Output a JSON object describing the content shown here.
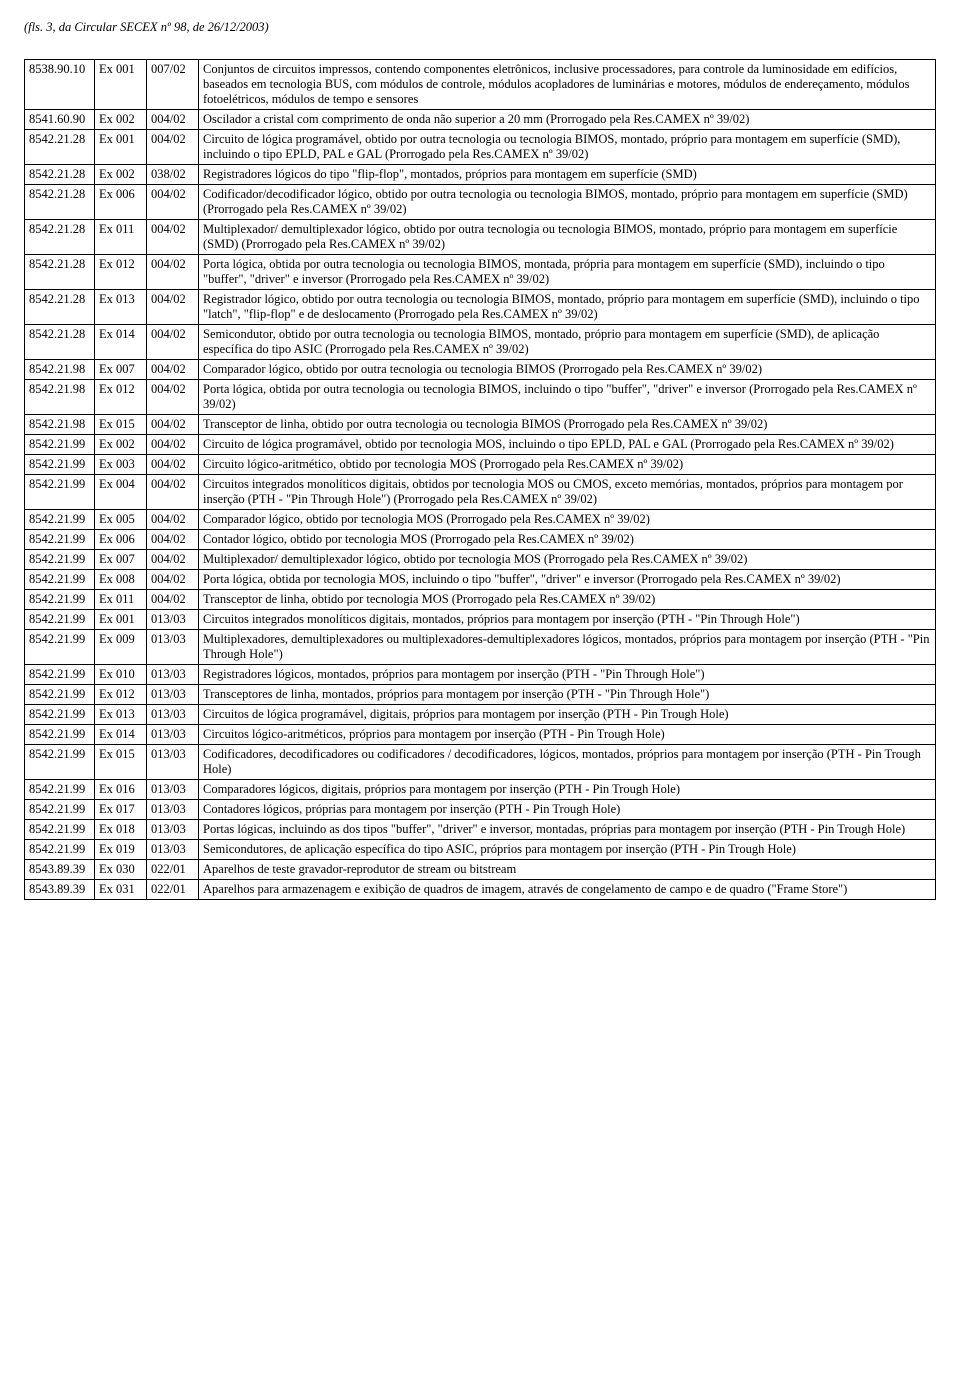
{
  "header": "(fls. 3, da Circular SECEX nº  98, de 26/12/2003)",
  "rows": [
    {
      "ncm": "8538.90.10",
      "ex": "Ex 001",
      "res": "007/02",
      "desc": "Conjuntos de circuitos impressos, contendo componentes eletrônicos, inclusive processadores, para controle da luminosidade em edifícios, baseados em tecnologia BUS, com módulos de controle, módulos acopladores de luminárias e motores, módulos de endereçamento, módulos fotoelétricos, módulos de tempo e sensores"
    },
    {
      "ncm": "8541.60.90",
      "ex": "Ex 002",
      "res": "004/02",
      "desc": "Oscilador a cristal com comprimento de onda não superior a 20 mm (Prorrogado pela Res.CAMEX nº 39/02)"
    },
    {
      "ncm": "8542.21.28",
      "ex": "Ex 001",
      "res": "004/02",
      "desc": "Circuito de lógica programável, obtido por outra tecnologia ou tecnologia BIMOS, montado, próprio para montagem em superfície (SMD), incluindo o tipo EPLD, PAL e GAL (Prorrogado pela Res.CAMEX nº 39/02)"
    },
    {
      "ncm": "8542.21.28",
      "ex": "Ex 002",
      "res": "038/02",
      "desc": "Registradores lógicos do tipo \"flip-flop\", montados, próprios para montagem em superfície (SMD)"
    },
    {
      "ncm": "8542.21.28",
      "ex": "Ex 006",
      "res": "004/02",
      "desc": "Codificador/decodificador lógico, obtido por outra tecnologia ou tecnologia BIMOS, montado, próprio para montagem em superfície (SMD) (Prorrogado pela Res.CAMEX nº 39/02)"
    },
    {
      "ncm": "8542.21.28",
      "ex": "Ex 011",
      "res": "004/02",
      "desc": "Multiplexador/ demultiplexador lógico, obtido por outra tecnologia ou tecnologia BIMOS, montado, próprio para montagem em superfície (SMD) (Prorrogado pela Res.CAMEX nº 39/02)"
    },
    {
      "ncm": "8542.21.28",
      "ex": "Ex 012",
      "res": "004/02",
      "desc": "Porta lógica, obtida por outra tecnologia ou tecnologia BIMOS, montada, própria para montagem em superfície (SMD), incluindo o tipo \"buffer\", \"driver\" e inversor (Prorrogado pela Res.CAMEX nº 39/02)"
    },
    {
      "ncm": "8542.21.28",
      "ex": "Ex 013",
      "res": "004/02",
      "desc": "Registrador lógico, obtido por outra tecnologia ou tecnologia BIMOS, montado, próprio para montagem em superfície (SMD), incluindo o tipo \"latch\", \"flip-flop\" e de deslocamento (Prorrogado pela Res.CAMEX nº 39/02)"
    },
    {
      "ncm": "8542.21.28",
      "ex": "Ex 014",
      "res": "004/02",
      "desc": "Semicondutor, obtido por outra tecnologia ou tecnologia BIMOS, montado, próprio para montagem em superfície (SMD), de aplicação específica do tipo ASIC (Prorrogado pela Res.CAMEX nº 39/02)"
    },
    {
      "ncm": "8542.21.98",
      "ex": "Ex 007",
      "res": "004/02",
      "desc": "Comparador lógico, obtido por outra tecnologia ou tecnologia BIMOS (Prorrogado pela Res.CAMEX nº 39/02)"
    },
    {
      "ncm": "8542.21.98",
      "ex": "Ex 012",
      "res": "004/02",
      "desc": "Porta lógica, obtida por outra tecnologia ou tecnologia BIMOS, incluindo o tipo \"buffer\", \"driver\" e inversor (Prorrogado pela Res.CAMEX nº 39/02)"
    },
    {
      "ncm": "8542.21.98",
      "ex": "Ex 015",
      "res": "004/02",
      "desc": "Transceptor de linha, obtido por outra tecnologia ou tecnologia BIMOS (Prorrogado pela Res.CAMEX nº 39/02)"
    },
    {
      "ncm": "8542.21.99",
      "ex": "Ex 002",
      "res": "004/02",
      "desc": "Circuito de lógica programável, obtido por tecnologia MOS, incluindo o tipo EPLD, PAL e GAL (Prorrogado pela Res.CAMEX nº 39/02)"
    },
    {
      "ncm": "8542.21.99",
      "ex": "Ex 003",
      "res": "004/02",
      "desc": "Circuito lógico-aritmético, obtido por tecnologia MOS (Prorrogado pela Res.CAMEX nº 39/02)"
    },
    {
      "ncm": "8542.21.99",
      "ex": "Ex 004",
      "res": "004/02",
      "desc": "Circuitos integrados monolíticos digitais, obtidos por tecnologia MOS ou CMOS, exceto memórias, montados, próprios para montagem por inserção (PTH - \"Pin Through Hole\") (Prorrogado pela Res.CAMEX nº 39/02)"
    },
    {
      "ncm": "8542.21.99",
      "ex": "Ex 005",
      "res": "004/02",
      "desc": "Comparador lógico, obtido por tecnologia MOS (Prorrogado pela Res.CAMEX nº 39/02)"
    },
    {
      "ncm": "8542.21.99",
      "ex": "Ex 006",
      "res": "004/02",
      "desc": "Contador lógico, obtido por tecnologia MOS (Prorrogado pela Res.CAMEX nº 39/02)"
    },
    {
      "ncm": "8542.21.99",
      "ex": "Ex 007",
      "res": "004/02",
      "desc": "Multiplexador/ demultiplexador lógico, obtido por tecnologia MOS (Prorrogado pela Res.CAMEX nº 39/02)"
    },
    {
      "ncm": "8542.21.99",
      "ex": "Ex 008",
      "res": "004/02",
      "desc": "Porta lógica, obtida por tecnologia MOS, incluindo o tipo \"buffer\", \"driver\" e inversor (Prorrogado pela Res.CAMEX nº 39/02)"
    },
    {
      "ncm": "8542.21.99",
      "ex": "Ex 011",
      "res": "004/02",
      "desc": "Transceptor de linha, obtido por tecnologia MOS (Prorrogado pela Res.CAMEX nº 39/02)"
    },
    {
      "ncm": "8542.21.99",
      "ex": "Ex 001",
      "res": "013/03",
      "desc": "Circuitos integrados monolíticos digitais, montados, próprios para montagem por inserção (PTH - \"Pin Through Hole\")"
    },
    {
      "ncm": "8542.21.99",
      "ex": "Ex 009",
      "res": "013/03",
      "desc": "Multiplexadores, demultiplexadores ou multiplexadores-demultiplexadores lógicos, montados, próprios para montagem por inserção (PTH - \"Pin Through Hole\")"
    },
    {
      "ncm": "8542.21.99",
      "ex": "Ex 010",
      "res": "013/03",
      "desc": "Registradores lógicos, montados, próprios para montagem por inserção (PTH - \"Pin Through Hole\")"
    },
    {
      "ncm": "8542.21.99",
      "ex": "Ex 012",
      "res": "013/03",
      "desc": "Transceptores de linha, montados, próprios para montagem por inserção (PTH - \"Pin Through Hole\")"
    },
    {
      "ncm": "8542.21.99",
      "ex": "Ex 013",
      "res": "013/03",
      "desc": "Circuitos de lógica programável, digitais, próprios para montagem por inserção (PTH - Pin Trough Hole)"
    },
    {
      "ncm": "8542.21.99",
      "ex": "Ex 014",
      "res": "013/03",
      "desc": "Circuitos lógico-aritméticos, próprios para montagem por inserção (PTH - Pin Trough Hole)"
    },
    {
      "ncm": "8542.21.99",
      "ex": "Ex 015",
      "res": "013/03",
      "desc": "Codificadores, decodificadores ou codificadores / decodificadores, lógicos, montados, próprios para montagem por inserção (PTH - Pin Trough Hole)"
    },
    {
      "ncm": "8542.21.99",
      "ex": "Ex 016",
      "res": "013/03",
      "desc": "Comparadores lógicos, digitais, próprios para montagem por inserção (PTH - Pin Trough Hole)"
    },
    {
      "ncm": "8542.21.99",
      "ex": "Ex 017",
      "res": "013/03",
      "desc": "Contadores lógicos, próprias para montagem por inserção (PTH - Pin Trough Hole)"
    },
    {
      "ncm": "8542.21.99",
      "ex": "Ex 018",
      "res": "013/03",
      "desc": "Portas lógicas, incluindo as dos tipos \"buffer\", \"driver\" e inversor, montadas, próprias para montagem por inserção (PTH - Pin Trough Hole)"
    },
    {
      "ncm": "8542.21.99",
      "ex": "Ex 019",
      "res": "013/03",
      "desc": "Semicondutores, de aplicação específica do tipo ASIC, próprios para montagem por inserção (PTH - Pin Trough Hole)"
    },
    {
      "ncm": "8543.89.39",
      "ex": "Ex 030",
      "res": "022/01",
      "desc": "Aparelhos de teste gravador-reprodutor de stream ou bitstream"
    },
    {
      "ncm": "8543.89.39",
      "ex": "Ex 031",
      "res": "022/01",
      "desc": "Aparelhos para armazenagem e exibição de quadros de imagem, através de congelamento de campo e de quadro (\"Frame Store\")"
    }
  ]
}
